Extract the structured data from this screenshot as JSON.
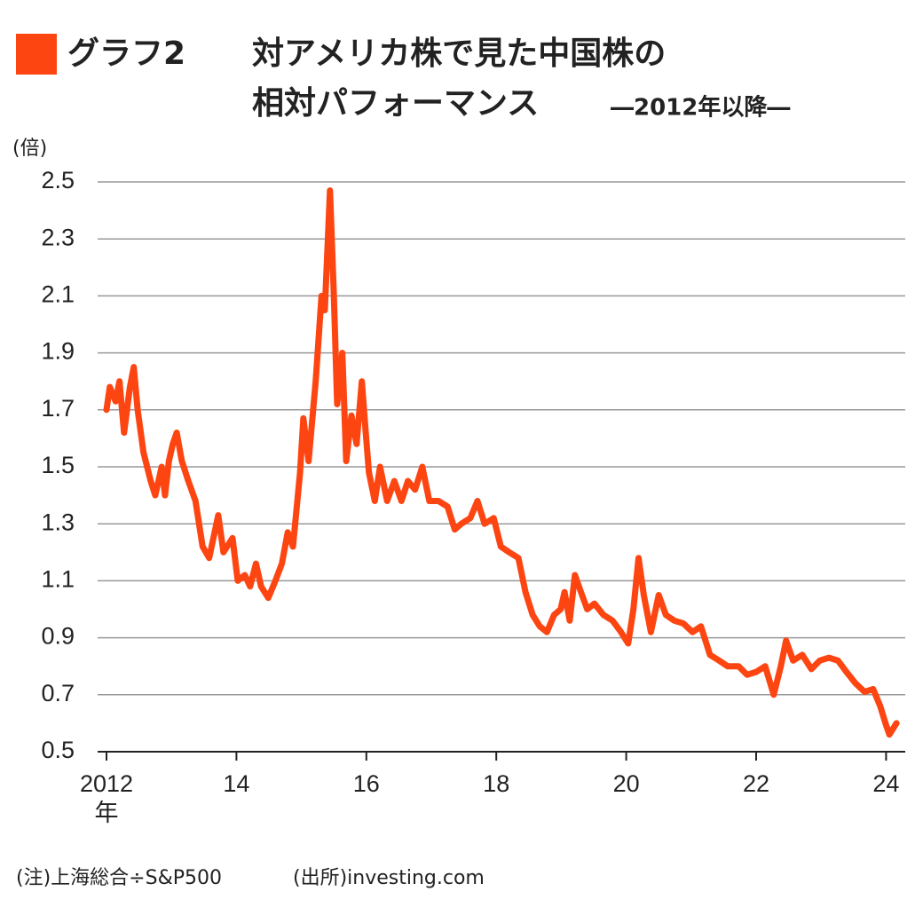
{
  "chart_data": {
    "type": "line",
    "figure_label": "グラフ2",
    "title_lines": [
      "対アメリカ株で見た中国株の",
      "相対パフォーマンス"
    ],
    "subtitle": "―2012年以降―",
    "ylabel": "(倍)",
    "x_unit": "年",
    "notes": [
      "(注)上海総合÷S&P500",
      "(出所)investing.com"
    ],
    "color": "#fd4512",
    "grid": true,
    "xlim": [
      2012,
      2024.3
    ],
    "ylim": [
      0.5,
      2.5
    ],
    "xticks": [
      {
        "value": 2012,
        "label": "2012"
      },
      {
        "value": 2014,
        "label": "14"
      },
      {
        "value": 2016,
        "label": "16"
      },
      {
        "value": 2018,
        "label": "18"
      },
      {
        "value": 2020,
        "label": "20"
      },
      {
        "value": 2022,
        "label": "22"
      },
      {
        "value": 2024,
        "label": "24"
      }
    ],
    "yticks": [
      0.5,
      0.7,
      0.9,
      1.1,
      1.3,
      1.5,
      1.7,
      1.9,
      2.1,
      2.3,
      2.5
    ],
    "x": [
      2012.0,
      2012.05,
      2012.14,
      2012.2,
      2012.27,
      2012.36,
      2012.42,
      2012.48,
      2012.57,
      2012.68,
      2012.75,
      2012.85,
      2012.9,
      2012.96,
      2013.02,
      2013.08,
      2013.16,
      2013.26,
      2013.37,
      2013.48,
      2013.58,
      2013.72,
      2013.8,
      2013.94,
      2014.02,
      2014.13,
      2014.21,
      2014.3,
      2014.38,
      2014.49,
      2014.6,
      2014.7,
      2014.79,
      2014.87,
      2014.98,
      2015.03,
      2015.11,
      2015.22,
      2015.31,
      2015.36,
      2015.44,
      2015.5,
      2015.55,
      2015.63,
      2015.69,
      2015.77,
      2015.85,
      2015.93,
      2015.99,
      2016.04,
      2016.13,
      2016.21,
      2016.32,
      2016.43,
      2016.54,
      2016.64,
      2016.75,
      2016.86,
      2016.97,
      2017.11,
      2017.25,
      2017.36,
      2017.46,
      2017.6,
      2017.71,
      2017.82,
      2017.96,
      2018.07,
      2018.2,
      2018.34,
      2018.45,
      2018.56,
      2018.67,
      2018.78,
      2018.89,
      2018.99,
      2019.05,
      2019.13,
      2019.21,
      2019.32,
      2019.4,
      2019.51,
      2019.65,
      2019.79,
      2019.92,
      2020.03,
      2020.11,
      2020.19,
      2020.27,
      2020.38,
      2020.5,
      2020.61,
      2020.74,
      2020.88,
      2021.02,
      2021.15,
      2021.29,
      2021.43,
      2021.56,
      2021.73,
      2021.86,
      2022.0,
      2022.14,
      2022.27,
      2022.38,
      2022.46,
      2022.57,
      2022.71,
      2022.85,
      2022.98,
      2023.12,
      2023.26,
      2023.39,
      2023.53,
      2023.67,
      2023.8,
      2023.91,
      2023.99,
      2024.05,
      2024.16
    ],
    "values": [
      1.7,
      1.78,
      1.73,
      1.8,
      1.62,
      1.78,
      1.85,
      1.7,
      1.55,
      1.45,
      1.4,
      1.5,
      1.4,
      1.52,
      1.58,
      1.62,
      1.52,
      1.45,
      1.38,
      1.22,
      1.18,
      1.33,
      1.2,
      1.25,
      1.1,
      1.12,
      1.08,
      1.16,
      1.08,
      1.04,
      1.1,
      1.16,
      1.27,
      1.22,
      1.48,
      1.67,
      1.52,
      1.8,
      2.1,
      2.05,
      2.47,
      2.1,
      1.72,
      1.9,
      1.52,
      1.68,
      1.58,
      1.8,
      1.62,
      1.48,
      1.38,
      1.5,
      1.38,
      1.45,
      1.38,
      1.45,
      1.42,
      1.5,
      1.38,
      1.38,
      1.36,
      1.28,
      1.3,
      1.32,
      1.38,
      1.3,
      1.32,
      1.22,
      1.2,
      1.18,
      1.06,
      0.98,
      0.94,
      0.92,
      0.98,
      1.0,
      1.06,
      0.96,
      1.12,
      1.05,
      1.0,
      1.02,
      0.98,
      0.96,
      0.92,
      0.88,
      1.0,
      1.18,
      1.05,
      0.92,
      1.05,
      0.98,
      0.96,
      0.95,
      0.92,
      0.94,
      0.84,
      0.82,
      0.8,
      0.8,
      0.77,
      0.78,
      0.8,
      0.7,
      0.8,
      0.89,
      0.82,
      0.84,
      0.79,
      0.82,
      0.83,
      0.82,
      0.78,
      0.74,
      0.71,
      0.72,
      0.66,
      0.6,
      0.56,
      0.6
    ]
  }
}
